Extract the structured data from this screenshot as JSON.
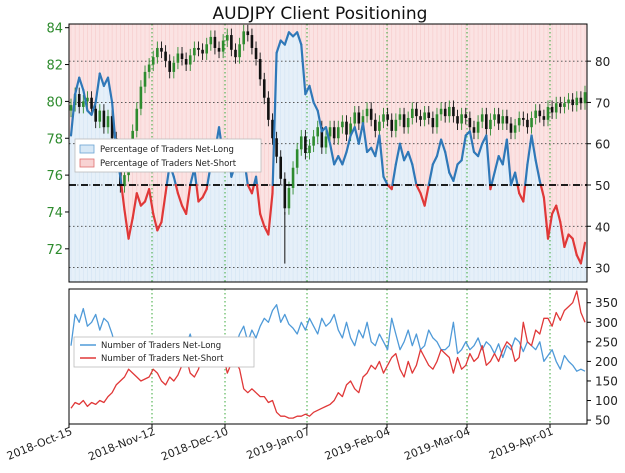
{
  "chart_data": [
    {
      "type": "line",
      "title": "AUDJPY Client Positioning",
      "x_ticks": [
        "2018-Oct-15",
        "2018-Nov-12",
        "2018-Dec-10",
        "2019-Jan-07",
        "2019-Feb-04",
        "2019-Mar-04",
        "2019-Apr-01"
      ],
      "price_axis": {
        "ticks": [
          72,
          74,
          76,
          78,
          80,
          82,
          84
        ],
        "ylim": [
          70.2,
          84.2
        ],
        "color": "#2e8b2e"
      },
      "percent_axis": {
        "ticks": [
          30,
          40,
          50,
          60,
          70,
          80
        ],
        "ylim": [
          26.5,
          89.0
        ]
      },
      "reference_line": 50,
      "legend": {
        "placement": "left",
        "items": [
          "Percentage of Traders Net-Long",
          "Percentage of Traders Net-Short"
        ]
      },
      "series": [
        {
          "name": "Percentage of Traders Net-Long",
          "color": "#2f78b8",
          "values": [
            62,
            72,
            76,
            73,
            68,
            67,
            70,
            77,
            74,
            76,
            70,
            58,
            52,
            44,
            37,
            42,
            48,
            45,
            46,
            49,
            43,
            39,
            41,
            48,
            55,
            52,
            48,
            45,
            43,
            50,
            54,
            46,
            47,
            49,
            55,
            58,
            64,
            57,
            61,
            52,
            55,
            60,
            57,
            50,
            48,
            52,
            43,
            40,
            38,
            48,
            82,
            85,
            84,
            87,
            86,
            87,
            84,
            72,
            74,
            70,
            68,
            63,
            64,
            60,
            55,
            57,
            55,
            58,
            62,
            64,
            60,
            65,
            58,
            59,
            57,
            62,
            52,
            50,
            49,
            55,
            60,
            56,
            58,
            55,
            50,
            48,
            45,
            50,
            55,
            57,
            61,
            58,
            53,
            51,
            55,
            56,
            62,
            63,
            58,
            57,
            60,
            62,
            49,
            53,
            57,
            55,
            61,
            50,
            53,
            48,
            46,
            55,
            62,
            56,
            51,
            47,
            37,
            43,
            45,
            41,
            35,
            38,
            37,
            33,
            31,
            36
          ]
        },
        {
          "name": "Percentage of Traders Net-Short",
          "color": "#e03838"
        },
        {
          "name": "AUDJPY",
          "color": "#2e8b2e",
          "close": [
            79.8,
            80.4,
            79.7,
            80.0,
            80.2,
            79.6,
            78.9,
            79.5,
            78.6,
            79.2,
            78.0,
            76.5,
            75.4,
            76.0,
            77.2,
            78.4,
            79.6,
            80.8,
            81.6,
            82.0,
            82.4,
            82.9,
            82.7,
            82.2,
            81.6,
            82.1,
            82.6,
            82.3,
            82.0,
            82.5,
            82.9,
            82.8,
            82.6,
            83.1,
            83.5,
            82.9,
            82.7,
            83.3,
            83.6,
            82.8,
            82.4,
            83.1,
            83.8,
            83.6,
            82.9,
            82.3,
            81.2,
            80.2,
            79.0,
            78.0,
            77.0,
            75.8,
            74.2,
            75.3,
            76.4,
            77.4,
            78.1,
            77.2,
            77.6,
            78.1,
            78.6,
            77.5,
            78.1,
            78.6,
            78.0,
            78.6,
            78.9,
            78.2,
            78.8,
            79.4,
            78.8,
            79.2,
            79.6,
            79.0,
            78.4,
            78.9,
            79.3,
            79.0,
            78.4,
            79.0,
            79.3,
            78.6,
            79.1,
            79.6,
            79.2,
            79.0,
            79.4,
            79.1,
            78.6,
            79.3,
            79.6,
            79.2,
            79.7,
            79.2,
            78.8,
            79.3,
            79.1,
            78.6,
            78.3,
            78.9,
            79.3,
            78.5,
            79.0,
            79.3,
            78.8,
            79.2,
            78.8,
            78.3,
            78.7,
            79.1,
            79.0,
            78.6,
            79.1,
            79.5,
            79.2,
            79.0,
            79.7,
            79.4,
            79.9,
            79.7,
            79.9,
            80.1,
            79.8,
            80.2,
            79.9,
            80.5
          ]
        }
      ]
    },
    {
      "type": "line",
      "x_ticks": [
        "2018-Oct-15",
        "2018-Nov-12",
        "2018-Dec-10",
        "2019-Jan-07",
        "2019-Feb-04",
        "2019-Mar-04",
        "2019-Apr-01"
      ],
      "y_axis": {
        "ticks": [
          50,
          100,
          150,
          200,
          250,
          300,
          350
        ],
        "ylim": [
          40,
          385
        ]
      },
      "legend": {
        "placement": "left",
        "items": [
          "Number of Traders Net-Long",
          "Number of Traders Net-Short"
        ]
      },
      "series": [
        {
          "name": "Number of Traders Net-Long",
          "color": "#4f9ad8",
          "values": [
            240,
            320,
            300,
            335,
            290,
            300,
            320,
            280,
            310,
            300,
            270,
            230,
            250,
            230,
            215,
            220,
            245,
            230,
            240,
            210,
            225,
            215,
            230,
            250,
            230,
            260,
            240,
            220,
            240,
            270,
            230,
            250,
            200,
            230,
            210,
            190,
            215,
            200,
            230,
            210,
            240,
            270,
            290,
            250,
            280,
            260,
            290,
            310,
            300,
            330,
            345,
            300,
            320,
            295,
            285,
            270,
            300,
            280,
            310,
            290,
            270,
            310,
            290,
            300,
            320,
            280,
            260,
            300,
            260,
            240,
            280,
            260,
            300,
            250,
            240,
            270,
            250,
            230,
            310,
            270,
            230,
            250,
            280,
            240,
            270,
            230,
            240,
            280,
            260,
            250,
            230,
            230,
            240,
            300,
            220,
            230,
            250,
            230,
            240,
            260,
            230,
            250,
            240,
            220,
            245,
            210,
            240,
            230,
            260,
            250,
            225,
            250,
            240,
            230,
            250,
            200,
            215,
            230,
            200,
            180,
            215,
            200,
            190,
            175,
            180,
            175
          ]
        },
        {
          "name": "Number of Traders Net-Short",
          "color": "#e03838",
          "values": [
            80,
            95,
            90,
            100,
            85,
            95,
            90,
            100,
            95,
            110,
            120,
            140,
            150,
            160,
            180,
            170,
            160,
            150,
            155,
            160,
            180,
            170,
            150,
            140,
            160,
            150,
            165,
            190,
            210,
            170,
            160,
            180,
            220,
            210,
            190,
            205,
            200,
            220,
            170,
            195,
            200,
            180,
            130,
            120,
            130,
            120,
            110,
            110,
            95,
            100,
            70,
            60,
            60,
            55,
            55,
            60,
            60,
            65,
            60,
            70,
            75,
            80,
            85,
            90,
            100,
            120,
            110,
            140,
            150,
            130,
            120,
            160,
            170,
            190,
            180,
            200,
            170,
            190,
            210,
            220,
            180,
            160,
            200,
            170,
            190,
            230,
            210,
            190,
            180,
            200,
            230,
            220,
            210,
            170,
            210,
            180,
            190,
            220,
            200,
            210,
            240,
            190,
            200,
            220,
            200,
            230,
            250,
            240,
            200,
            210,
            300,
            250,
            240,
            280,
            270,
            310,
            310,
            290,
            325,
            305,
            330,
            340,
            350,
            380,
            325,
            300
          ]
        }
      ]
    }
  ]
}
